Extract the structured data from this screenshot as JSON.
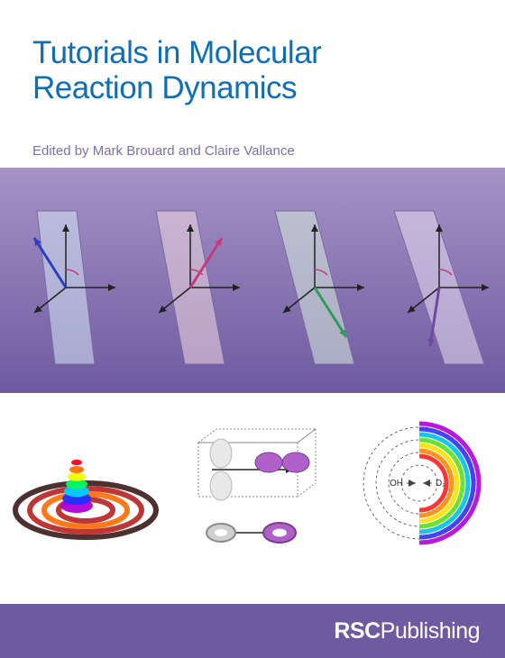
{
  "title": {
    "line1": "Tutorials in Molecular",
    "line2": "Reaction Dynamics",
    "color": "#0f6eb5",
    "fontsize": 35
  },
  "editors": {
    "text": "Edited by Mark Brouard and Claire Vallance",
    "color": "#7e6fa8",
    "fontsize": 15
  },
  "bands": {
    "purple_top": "#a593c6",
    "purple_bottom": "#6e5aa0",
    "footer": "#6e5aa0",
    "publisher_color": "#ffffff"
  },
  "publisher": {
    "bold": "RSC",
    "light": "Publishing",
    "fontsize": 25
  },
  "upper_diagrams": {
    "plane_colors": [
      "#d4e8f5",
      "#f0d9e1",
      "#d8ecdf",
      "#e8dff0"
    ],
    "plane_stroke": "#7a6aa2",
    "axis_color": "#222222",
    "vector_colors": [
      "#2b3fbd",
      "#c43a7a",
      "#2f9b5a",
      "#6b4aa0"
    ],
    "arc_color": "#c43a7a",
    "plane_opacity": 0.55
  },
  "lower_diagrams": {
    "wavepacket": {
      "ring_outer": "#3a1b1b",
      "ring_mid": "#b82020",
      "ring_inner": "#ff6a00",
      "peak_colors": [
        "#b000d8",
        "#2030ff",
        "#00d0ff",
        "#00ff60",
        "#f0ff00",
        "#ff7000",
        "#ff0020"
      ]
    },
    "orbitals": {
      "box_stroke": "#888888",
      "lobe_light": "#e8e8e8",
      "lobe_shadow": "#b8b8b8",
      "lobe_purple": "#b060c8",
      "lobe_purple_dark": "#7a3a95",
      "torus_light": "#d0d0d0",
      "torus_dark": "#8a8a8a",
      "axis": "#222222"
    },
    "scattering": {
      "circle_stroke": "#444444",
      "labels": {
        "left": "OH",
        "right": "D₂"
      },
      "label_color": "#333333",
      "band_colors": [
        "#ff2020",
        "#ff8a00",
        "#ffe000",
        "#60e020",
        "#00c0e0",
        "#3030ff",
        "#b000d8"
      ]
    }
  }
}
